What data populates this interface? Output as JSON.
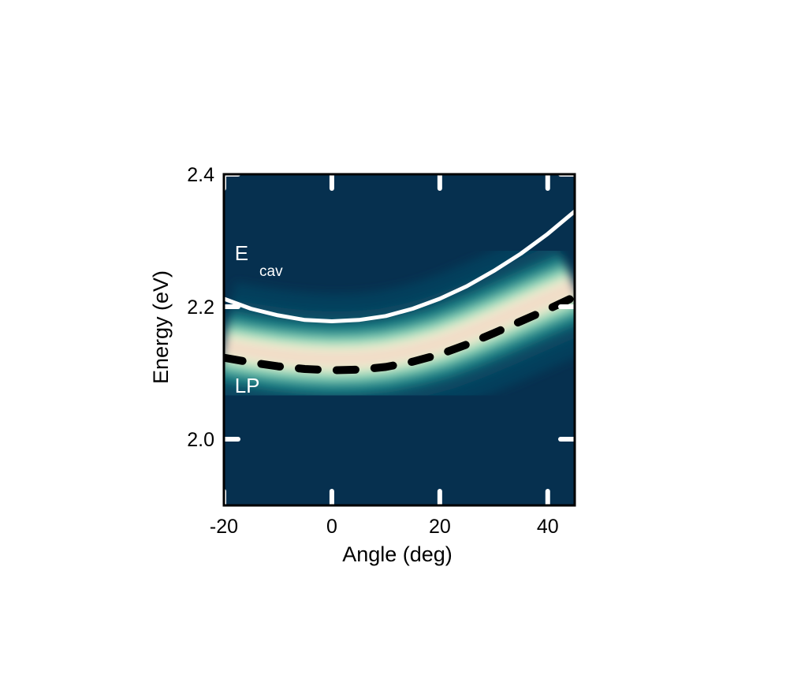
{
  "chart_data": {
    "type": "heatmap",
    "title": "",
    "xlabel": "Angle (deg)",
    "ylabel": "Energy (eV)",
    "xlim": [
      -20,
      45
    ],
    "ylim": [
      1.9,
      2.4
    ],
    "x_ticks": [
      {
        "value": -20,
        "label": "-20"
      },
      {
        "value": 0,
        "label": "0"
      },
      {
        "value": 20,
        "label": "20"
      },
      {
        "value": 40,
        "label": "40"
      }
    ],
    "y_ticks": [
      {
        "value": 2.0,
        "label": "2.0"
      },
      {
        "value": 2.2,
        "label": "2.2"
      },
      {
        "value": 2.4,
        "label": "2.4"
      }
    ],
    "grid": false,
    "legend": "none",
    "colormap": [
      "#06304f",
      "#0a4d66",
      "#1b8a8c",
      "#7fd0b6",
      "#e6f2d0",
      "#f2dcc8"
    ],
    "series": [
      {
        "label": "E cav",
        "style": "solid",
        "color": "#ffffff",
        "x": [
          -20,
          -15,
          -10,
          -5,
          0,
          5,
          10,
          15,
          20,
          25,
          30,
          35,
          40,
          45
        ],
        "y": [
          2.212,
          2.197,
          2.187,
          2.18,
          2.178,
          2.18,
          2.186,
          2.197,
          2.212,
          2.231,
          2.254,
          2.28,
          2.31,
          2.344
        ]
      },
      {
        "label": "LP",
        "style": "dashed",
        "color": "#000000",
        "x": [
          -20,
          -15,
          -10,
          -5,
          0,
          5,
          10,
          15,
          20,
          25,
          30,
          35,
          40,
          45
        ],
        "y": [
          2.123,
          2.116,
          2.11,
          2.106,
          2.104,
          2.105,
          2.109,
          2.117,
          2.128,
          2.143,
          2.16,
          2.178,
          2.196,
          2.215
        ]
      }
    ],
    "band": {
      "x": [
        -20,
        -15,
        -10,
        -5,
        0,
        5,
        10,
        15,
        20,
        25,
        30,
        35,
        40,
        45
      ],
      "center": [
        2.14,
        2.133,
        2.127,
        2.123,
        2.121,
        2.122,
        2.126,
        2.134,
        2.145,
        2.16,
        2.177,
        2.195,
        2.213,
        2.23
      ]
    },
    "annotations": [
      {
        "main": "E",
        "sub": "cav",
        "x": -18,
        "y": 2.27
      },
      {
        "main": "LP",
        "sub": "",
        "x": -18,
        "y": 2.07
      }
    ]
  }
}
